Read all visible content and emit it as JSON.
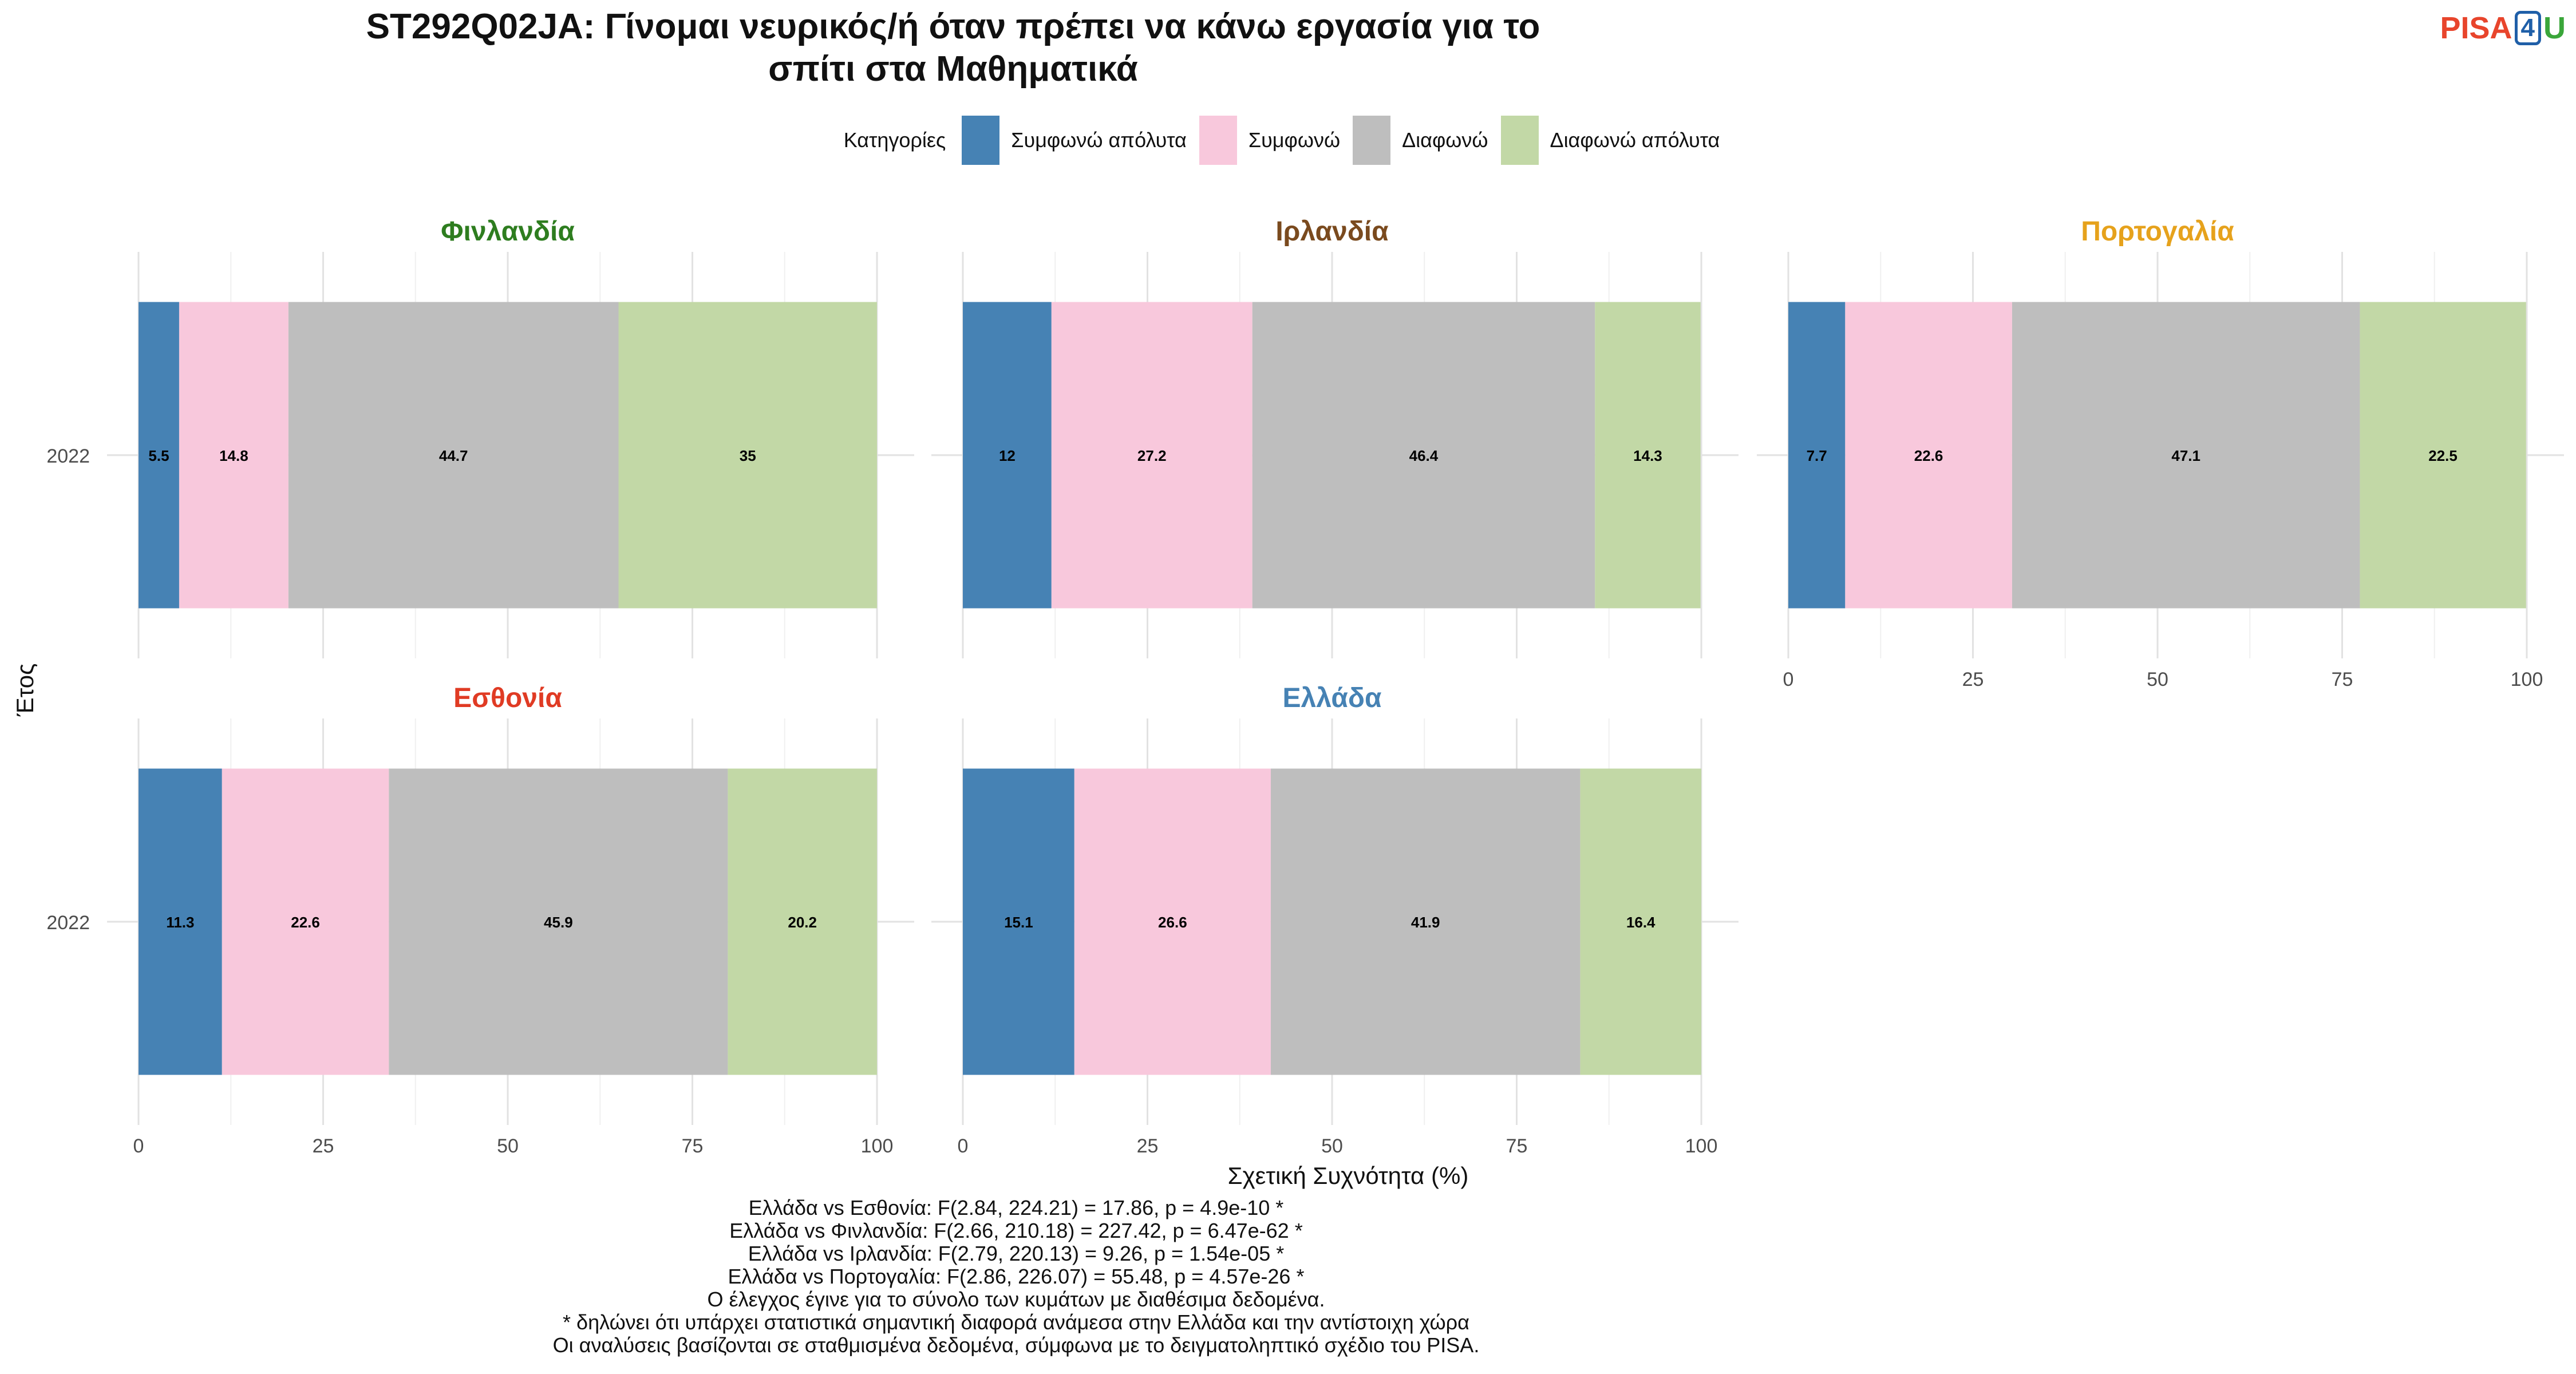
{
  "title_line1": "ST292Q02JA: Γίνομαι νευρικός/ή όταν πρέπει να κάνω εργασία για το",
  "title_line2": "σπίτι στα Μαθηματικά",
  "logo": {
    "pisa": "PISA",
    "four": "4",
    "u": "U"
  },
  "legend": {
    "title": "Κατηγορίες",
    "items": [
      {
        "label": "Συμφωνώ απόλυτα",
        "color": "#4682b4"
      },
      {
        "label": "Συμφωνώ",
        "color": "#f8c8dc"
      },
      {
        "label": "Διαφωνώ",
        "color": "#bebebe"
      },
      {
        "label": "Διαφωνώ απόλυτα",
        "color": "#c2d8a6"
      }
    ]
  },
  "chart_data": {
    "type": "bar",
    "orientation": "horizontal",
    "stacked": true,
    "xlabel": "Σχετική Συχνότητα (%)",
    "ylabel": "Έτος",
    "xlim": [
      0,
      100
    ],
    "xticks": [
      0,
      25,
      50,
      75,
      100
    ],
    "categories": [
      "Συμφωνώ απόλυτα",
      "Συμφωνώ",
      "Διαφωνώ",
      "Διαφωνώ απόλυτα"
    ],
    "panels": [
      {
        "country": "Φινλανδία",
        "title_color": "#2e7d1f",
        "year": "2022",
        "values": [
          5.5,
          14.8,
          44.7,
          35
        ]
      },
      {
        "country": "Ιρλανδία",
        "title_color": "#7a4a1e",
        "year": "2022",
        "values": [
          12,
          27.2,
          46.4,
          14.3
        ]
      },
      {
        "country": "Πορτογαλία",
        "title_color": "#e6a21c",
        "year": "2022",
        "values": [
          7.7,
          22.6,
          47.1,
          22.5
        ]
      },
      {
        "country": "Εσθονία",
        "title_color": "#e03b24",
        "year": "2022",
        "values": [
          11.3,
          22.6,
          45.9,
          20.2
        ]
      },
      {
        "country": "Ελλάδα",
        "title_color": "#4682b4",
        "year": "2022",
        "values": [
          15.1,
          26.6,
          41.9,
          16.4
        ]
      }
    ],
    "grid": true
  },
  "notes": [
    "Ελλάδα vs Εσθονία: F(2.84, 224.21) = 17.86, p = 4.9e-10 *",
    "Ελλάδα vs Φινλανδία: F(2.66, 210.18) = 227.42, p = 6.47e-62 *",
    "Ελλάδα vs Ιρλανδία: F(2.79, 220.13) = 9.26, p = 1.54e-05 *",
    "Ελλάδα vs Πορτογαλία: F(2.86, 226.07) = 55.48, p = 4.57e-26 *",
    "Ο έλεγχος έγινε για το σύνολο των κυμάτων με διαθέσιμα δεδομένα.",
    "* δηλώνει ότι υπάρχει στατιστικά σημαντική διαφορά ανάμεσα στην Ελλάδα και την αντίστοιχη χώρα",
    "Οι αναλύσεις βασίζονται σε σταθμισμένα δεδομένα, σύμφωνα με το δειγματοληπτικό σχέδιο του PISA."
  ]
}
